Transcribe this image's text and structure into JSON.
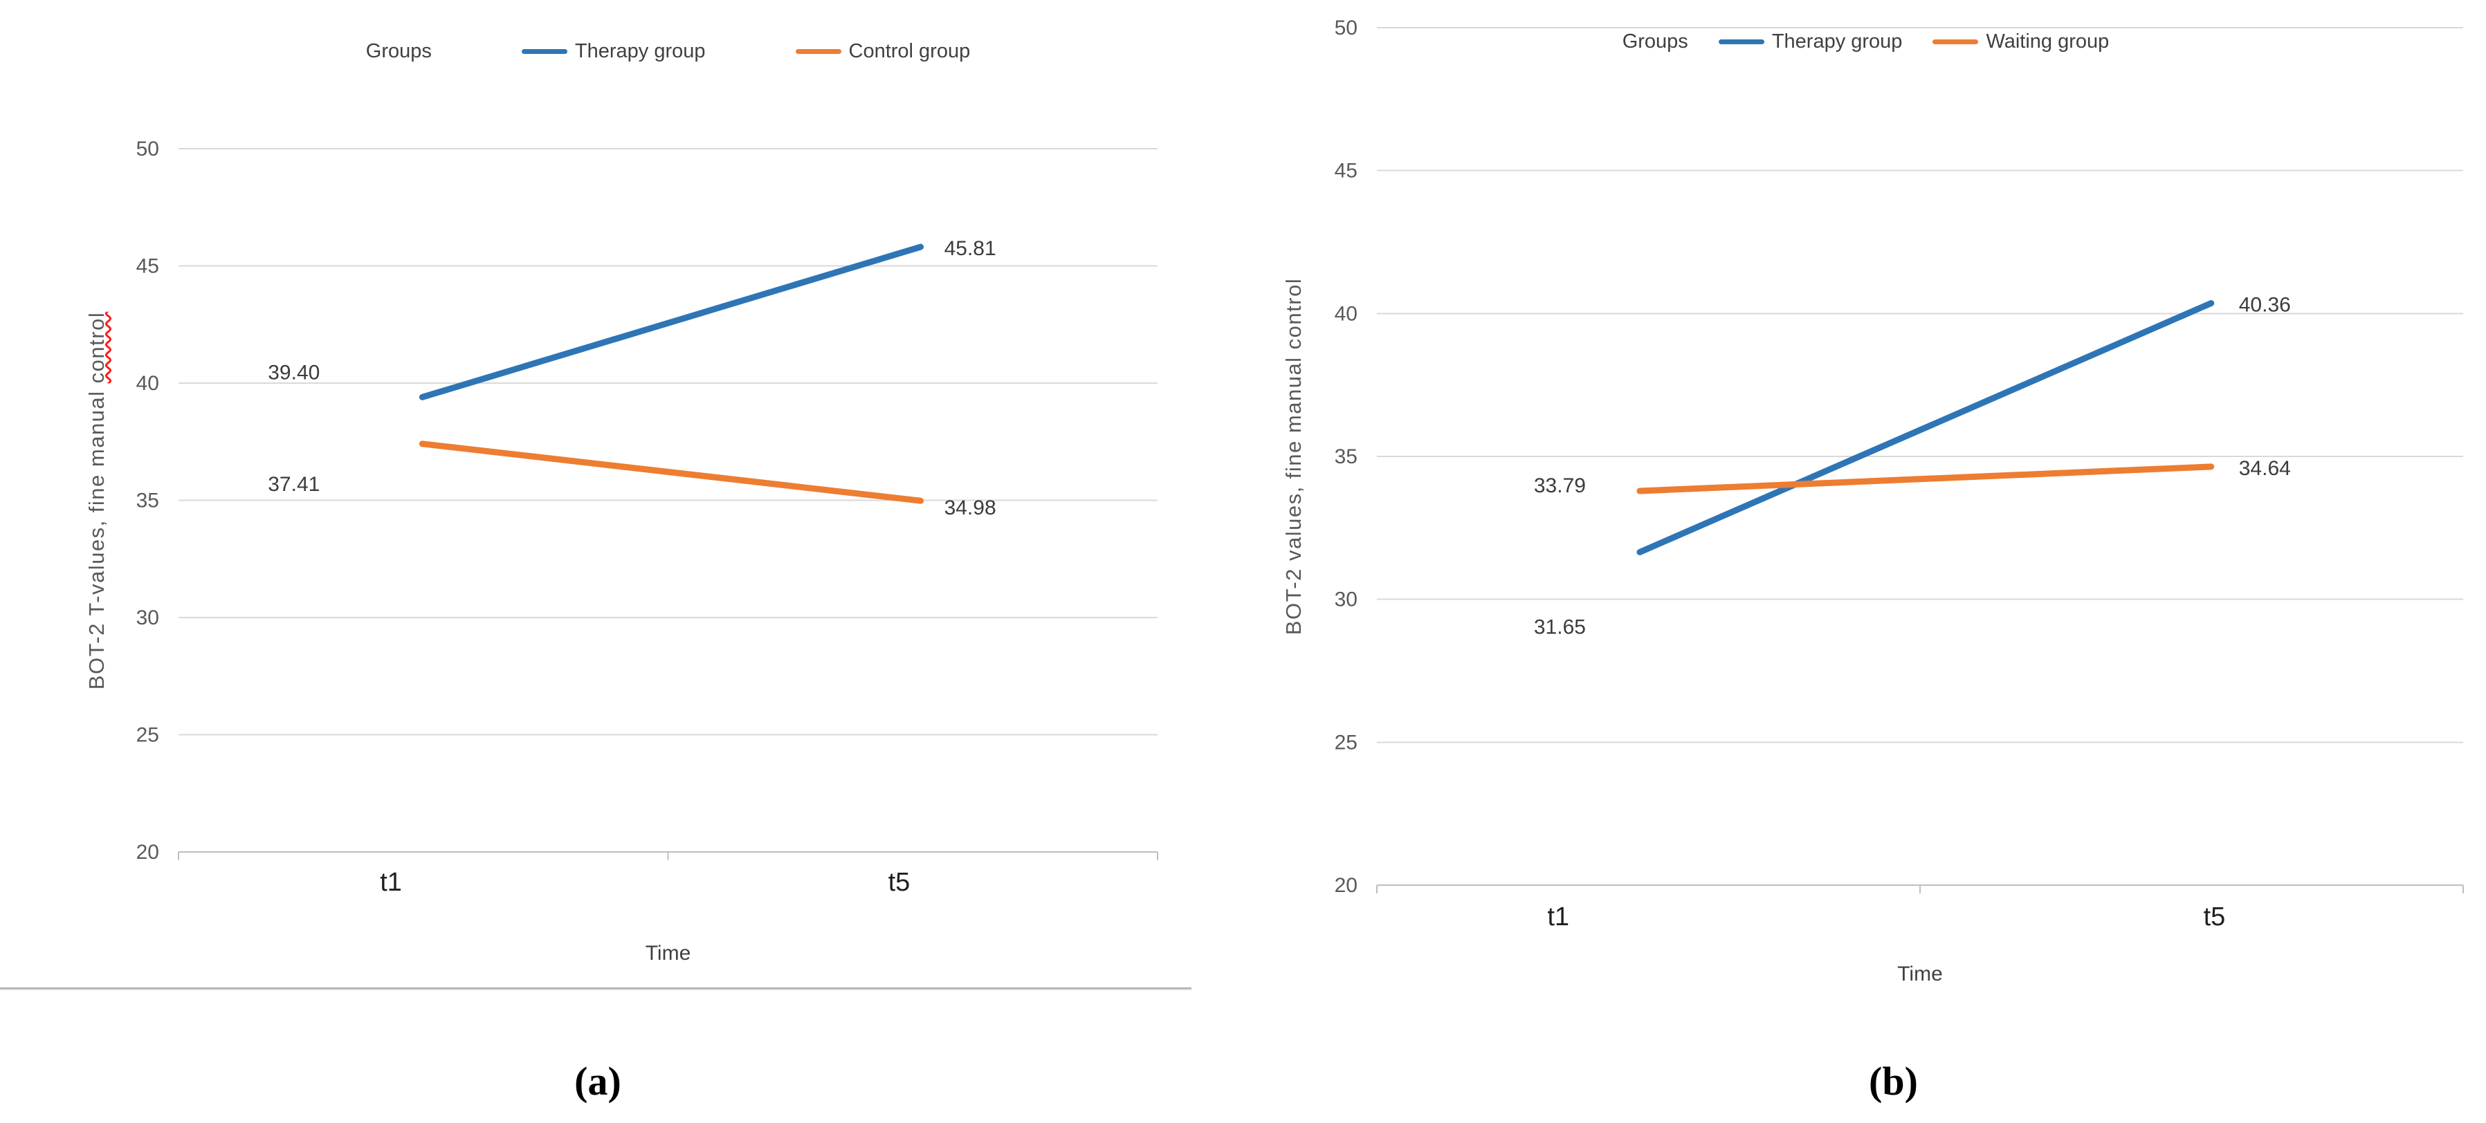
{
  "figure": {
    "description": "Two-panel line chart figure",
    "captions": [
      "(a)",
      "(b)"
    ]
  },
  "chart_data": [
    {
      "id": "a",
      "type": "line",
      "legend_title": "Groups",
      "legend_position": "top",
      "grid": true,
      "categories": [
        "t1",
        "t5"
      ],
      "series": [
        {
          "name": "Therapy group",
          "color": "#2E75B6",
          "values": [
            39.4,
            45.81
          ],
          "point_labels": [
            "39.40",
            "45.81"
          ]
        },
        {
          "name": "Control group",
          "color": "#ED7D31",
          "values": [
            37.41,
            34.98
          ],
          "point_labels": [
            "37.41",
            "34.98"
          ]
        }
      ],
      "xlabel": "Time",
      "ylabel": "BOT-2 T-values, fine manual control",
      "ylabel_spellcheck_word": "control",
      "ylim": [
        20,
        50
      ],
      "ytick_step": 5,
      "yticks": [
        20,
        25,
        30,
        35,
        40,
        45,
        50
      ],
      "caption": "(a)"
    },
    {
      "id": "b",
      "type": "line",
      "legend_title": "Groups",
      "legend_position": "top",
      "grid": true,
      "categories": [
        "t1",
        "t5"
      ],
      "series": [
        {
          "name": "Therapy group",
          "color": "#2E75B6",
          "values": [
            31.65,
            40.36
          ],
          "point_labels": [
            "31.65",
            "40.36"
          ]
        },
        {
          "name": "Waiting group",
          "color": "#ED7D31",
          "values": [
            33.79,
            34.64
          ],
          "point_labels": [
            "33.79",
            "34.64"
          ]
        }
      ],
      "xlabel": "Time",
      "ylabel": "BOT-2 values, fine manual control",
      "ylim": [
        20,
        50
      ],
      "ytick_step": 5,
      "yticks": [
        20,
        25,
        30,
        35,
        40,
        45,
        50
      ],
      "caption": "(b)"
    }
  ]
}
